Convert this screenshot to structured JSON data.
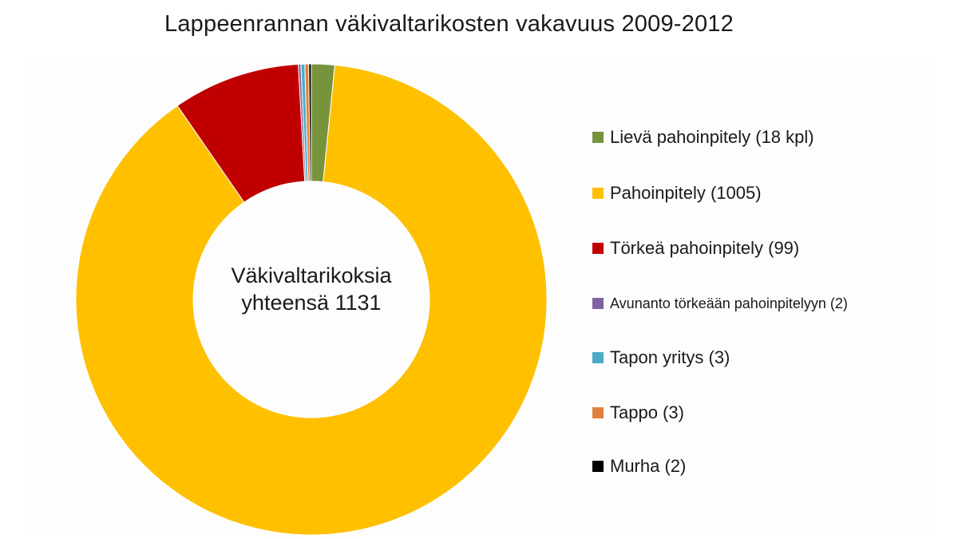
{
  "chart_data": {
    "type": "pie",
    "variant": "donut",
    "title": "Lappeenrannan väkivaltarikosten vakavuus 2009-2012",
    "center_label": [
      "Väkivaltarikoksia",
      "yhteensä 1131"
    ],
    "total": 1131,
    "legend_position": "right",
    "slices": [
      {
        "label": "Lievä pahoinpitely (18 kpl)",
        "value": 18,
        "color": "#77933c"
      },
      {
        "label": "Pahoinpitely (1005)",
        "value": 1005,
        "color": "#ffc000"
      },
      {
        "label": "Törkeä pahoinpitely (99)",
        "value": 99,
        "color": "#c00000"
      },
      {
        "label": "Avunanto törkeään pahoinpitelyyn (2)",
        "value": 2,
        "color": "#8064a2"
      },
      {
        "label": "Tapon yritys (3)",
        "value": 3,
        "color": "#4bacc6"
      },
      {
        "label": "Tappo (3)",
        "value": 3,
        "color": "#e0823c"
      },
      {
        "label": "Murha (2)",
        "value": 2,
        "color": "#000000"
      }
    ]
  }
}
